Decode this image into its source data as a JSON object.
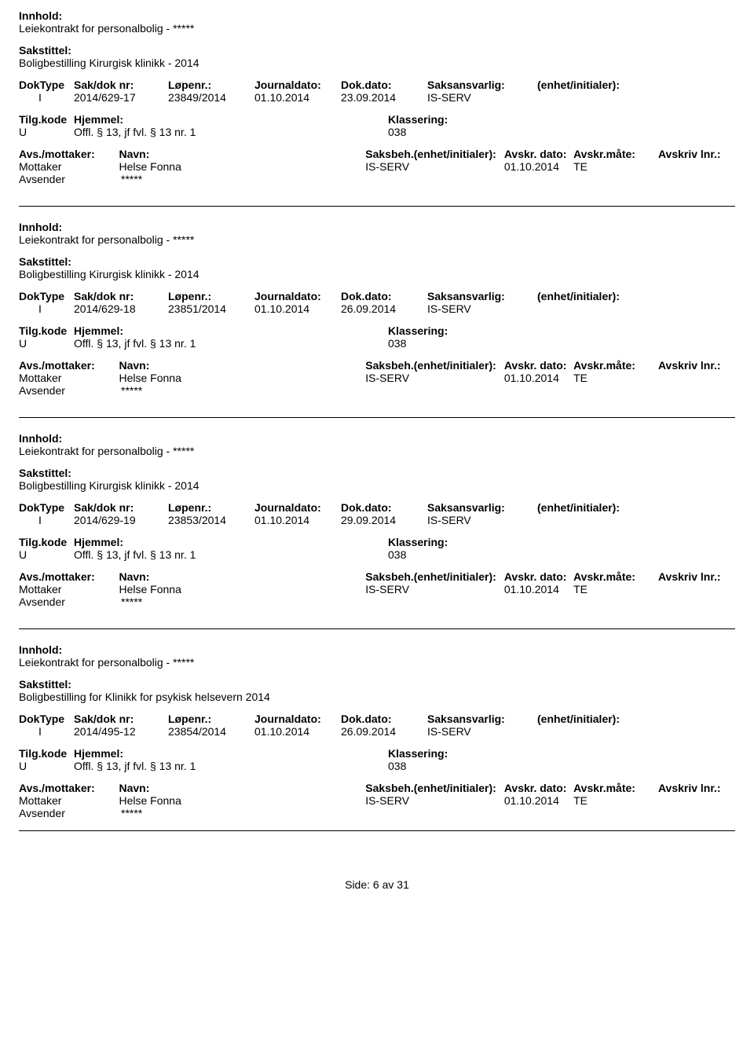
{
  "labels": {
    "innhold": "Innhold:",
    "sakstittel": "Sakstittel:",
    "doktype": "DokType",
    "sakdok": "Sak/dok nr:",
    "lopenr": "Løpenr.:",
    "journaldato": "Journaldato:",
    "dokdato": "Dok.dato:",
    "saksansvarlig": "Saksansvarlig:",
    "enhet": "(enhet/initialer):",
    "tilgkode": "Tilg.kode",
    "hjemmel": "Hjemmel:",
    "klassering": "Klassering:",
    "avsmottaker": "Avs./mottaker:",
    "navn": "Navn:",
    "saksbeh": "Saksbeh.(enhet/initialer):",
    "avskrdato": "Avskr. dato:",
    "avskrmate": "Avskr.måte:",
    "avskrlnr": "Avskriv lnr.:",
    "mottaker": "Mottaker",
    "avsender": "Avsender"
  },
  "records": [
    {
      "innhold": "Leiekontrakt for personalbolig - *****",
      "sakstittel": "Boligbestilling Kirurgisk klinikk - 2014",
      "doktype": "I",
      "sakdok": "2014/629-17",
      "lopenr": "23849/2014",
      "journaldato": "01.10.2014",
      "dokdato": "23.09.2014",
      "saksansvarlig": "IS-SERV",
      "enhet": "",
      "tilgkode": "U",
      "hjemmel": "Offl. § 13, jf fvl. § 13 nr. 1",
      "klassering": "038",
      "mottaker_navn": "Helse Fonna",
      "saksbeh": "IS-SERV",
      "avskrdato": "01.10.2014",
      "avskrmate": "TE",
      "avskrlnr": "",
      "avsender_navn": "*****"
    },
    {
      "innhold": "Leiekontrakt for personalbolig - *****",
      "sakstittel": "Boligbestilling Kirurgisk klinikk - 2014",
      "doktype": "I",
      "sakdok": "2014/629-18",
      "lopenr": "23851/2014",
      "journaldato": "01.10.2014",
      "dokdato": "26.09.2014",
      "saksansvarlig": "IS-SERV",
      "enhet": "",
      "tilgkode": "U",
      "hjemmel": "Offl. § 13, jf fvl. § 13 nr. 1",
      "klassering": "038",
      "mottaker_navn": "Helse Fonna",
      "saksbeh": "IS-SERV",
      "avskrdato": "01.10.2014",
      "avskrmate": "TE",
      "avskrlnr": "",
      "avsender_navn": "*****"
    },
    {
      "innhold": "Leiekontrakt for personalbolig - *****",
      "sakstittel": "Boligbestilling Kirurgisk klinikk - 2014",
      "doktype": "I",
      "sakdok": "2014/629-19",
      "lopenr": "23853/2014",
      "journaldato": "01.10.2014",
      "dokdato": "29.09.2014",
      "saksansvarlig": "IS-SERV",
      "enhet": "",
      "tilgkode": "U",
      "hjemmel": "Offl. § 13, jf fvl. § 13 nr. 1",
      "klassering": "038",
      "mottaker_navn": "Helse Fonna",
      "saksbeh": "IS-SERV",
      "avskrdato": "01.10.2014",
      "avskrmate": "TE",
      "avskrlnr": "",
      "avsender_navn": "*****"
    },
    {
      "innhold": "Leiekontrakt for personalbolig - *****",
      "sakstittel": "Boligbestilling for Klinikk for psykisk helsevern 2014",
      "doktype": "I",
      "sakdok": "2014/495-12",
      "lopenr": "23854/2014",
      "journaldato": "01.10.2014",
      "dokdato": "26.09.2014",
      "saksansvarlig": "IS-SERV",
      "enhet": "",
      "tilgkode": "U",
      "hjemmel": "Offl. § 13, jf fvl. § 13 nr. 1",
      "klassering": "038",
      "mottaker_navn": "Helse Fonna",
      "saksbeh": "IS-SERV",
      "avskrdato": "01.10.2014",
      "avskrmate": "TE",
      "avskrlnr": "",
      "avsender_navn": "*****"
    }
  ],
  "footer": {
    "side_label": "Side:",
    "page": "6",
    "av": "av",
    "total": "31"
  }
}
